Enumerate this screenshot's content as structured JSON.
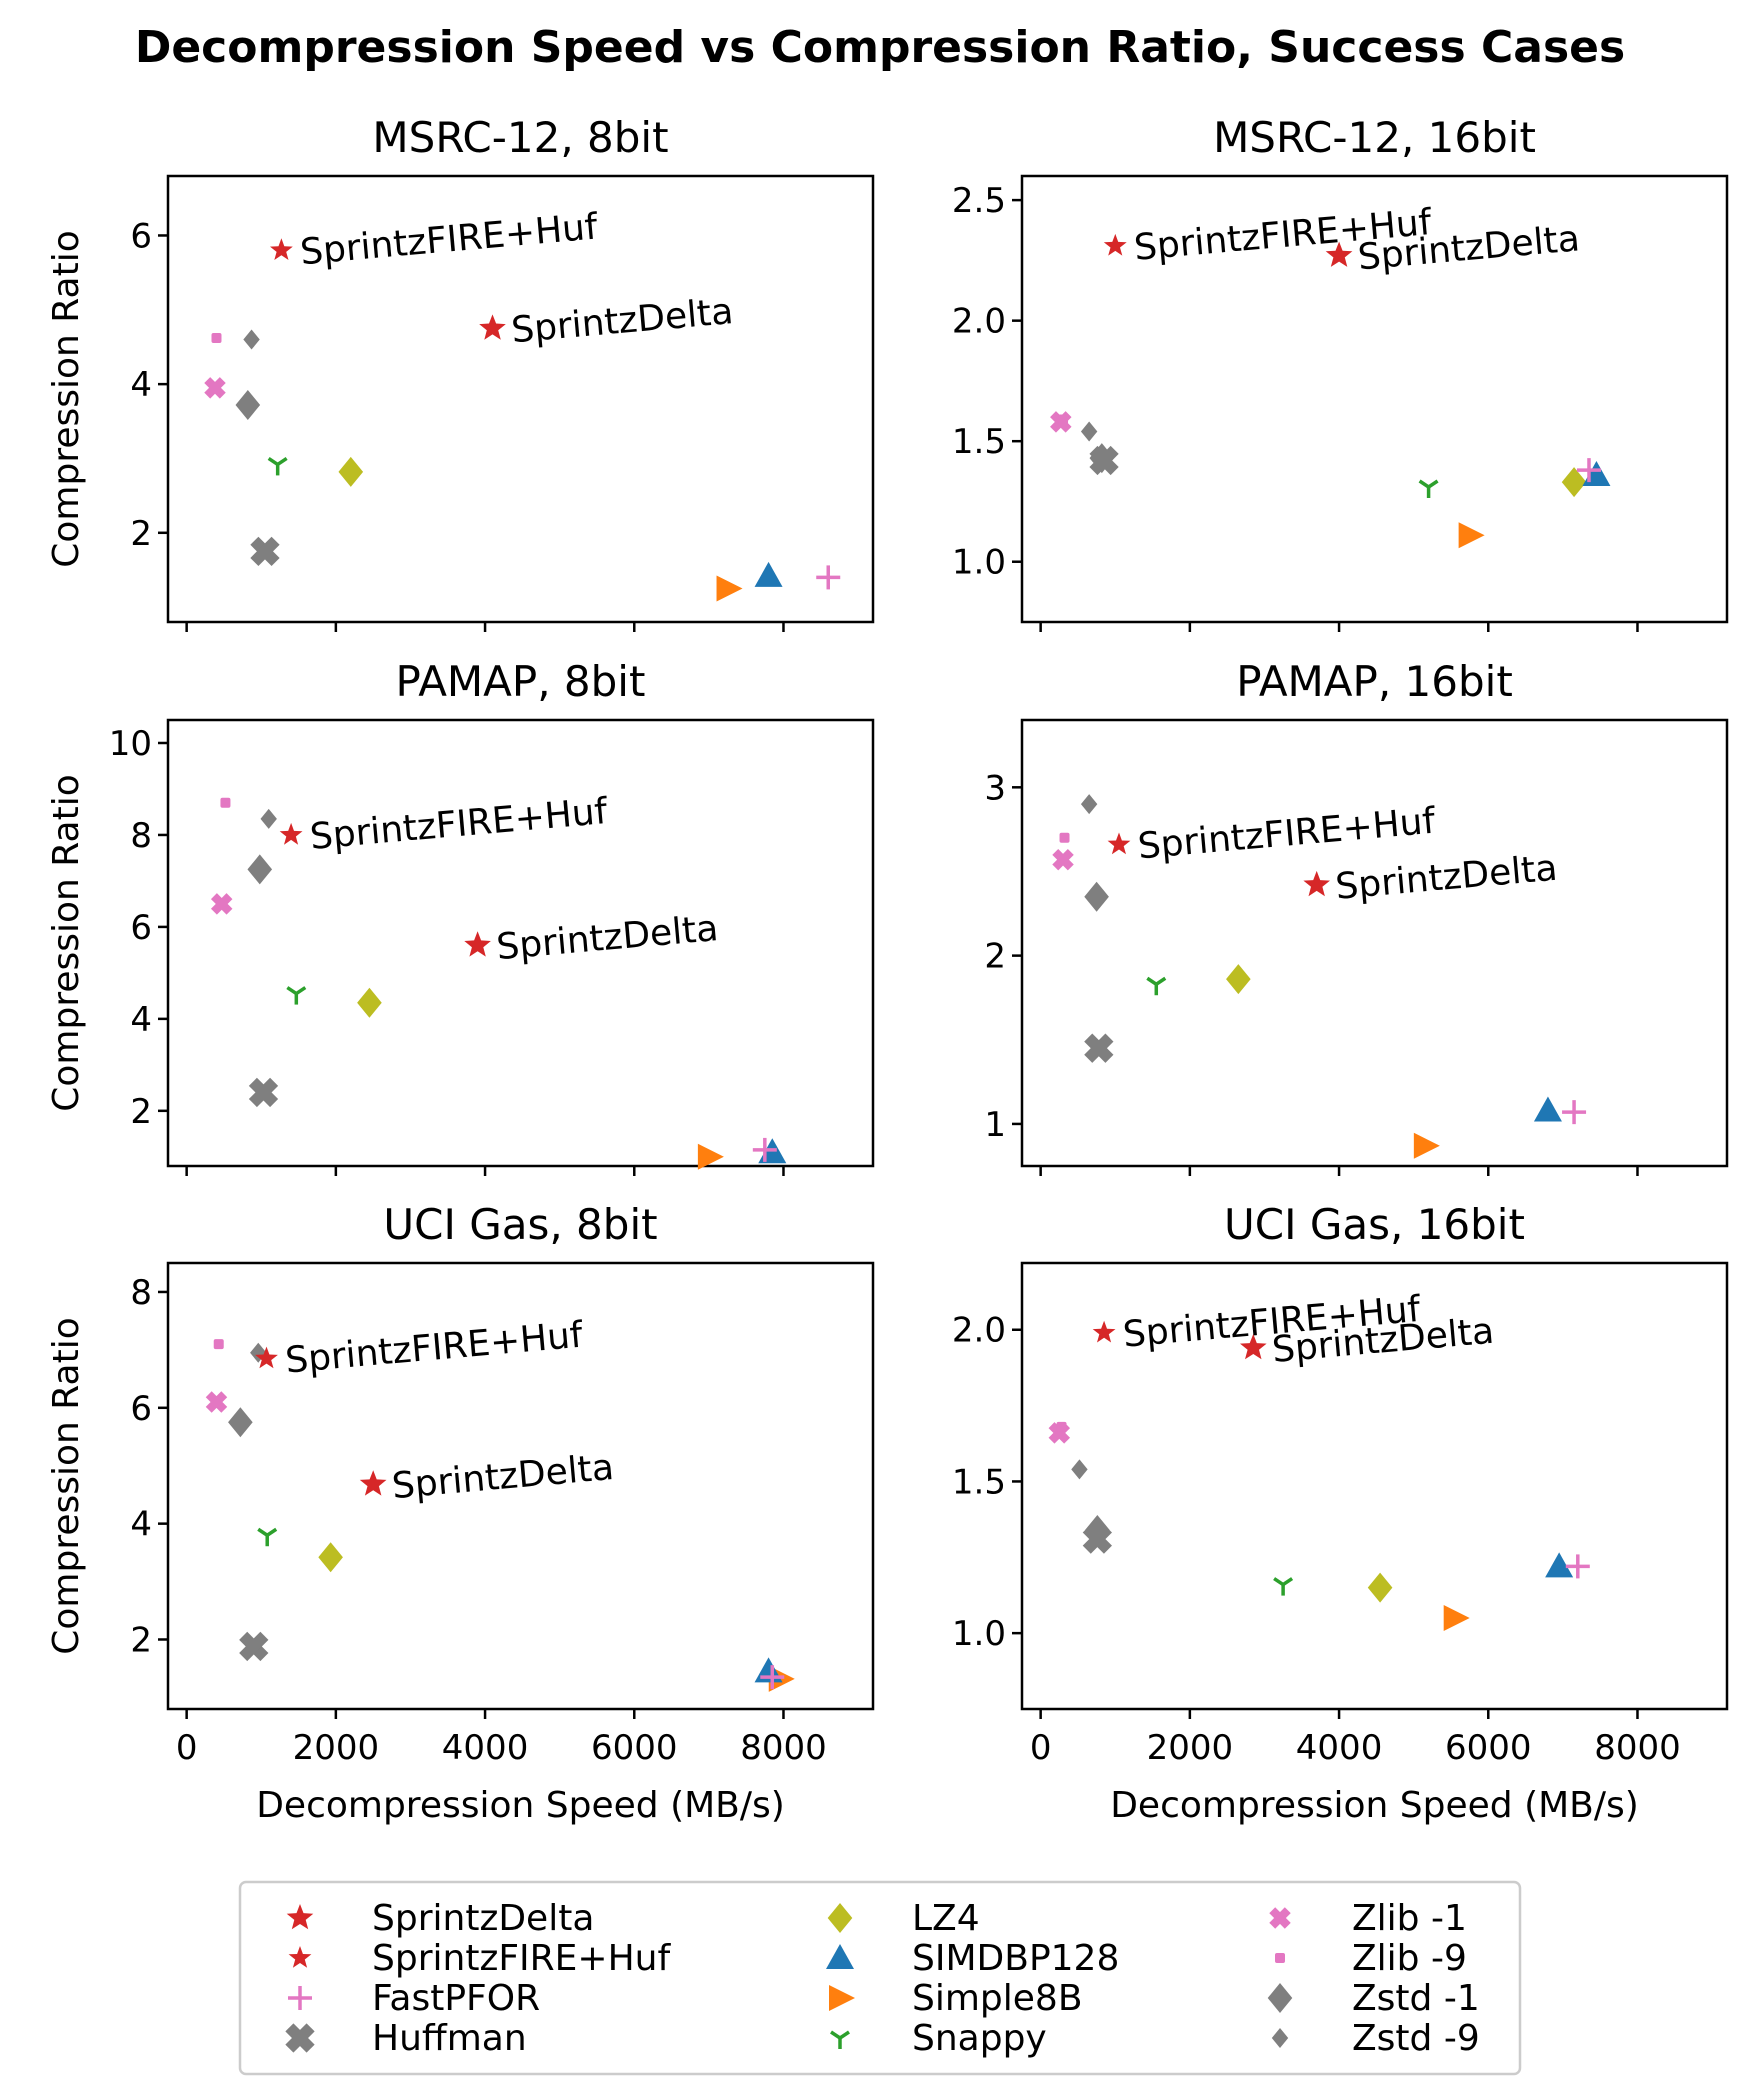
{
  "figure_title": "Decompression Speed vs Compression Ratio, Success Cases",
  "xlabel": "Decompression Speed (MB/s)",
  "ylabel": "Compression Ratio",
  "legend": [
    {
      "name": "SprintzDelta",
      "marker": "star-icon",
      "color": "#d62728"
    },
    {
      "name": "SprintzFIRE+Huf",
      "marker": "star-small-icon",
      "color": "#d62728"
    },
    {
      "name": "FastPFOR",
      "marker": "plus-icon",
      "color": "#e377c2"
    },
    {
      "name": "Huffman",
      "marker": "x-filled-icon",
      "color": "#7f7f7f"
    },
    {
      "name": "LZ4",
      "marker": "diamond-icon",
      "color": "#bcbd22"
    },
    {
      "name": "SIMDBP128",
      "marker": "triangle-up-icon",
      "color": "#1f77b4"
    },
    {
      "name": "Simple8B",
      "marker": "triangle-right-icon",
      "color": "#ff7f0e"
    },
    {
      "name": "Snappy",
      "marker": "tri-down-icon",
      "color": "#2ca02c"
    },
    {
      "name": "Zlib -1",
      "marker": "x-filled-small-icon",
      "color": "#e377c2"
    },
    {
      "name": "Zlib -9",
      "marker": "dot-icon",
      "color": "#e377c2"
    },
    {
      "name": "Zstd -1",
      "marker": "diamond-icon",
      "color": "#7f7f7f"
    },
    {
      "name": "Zstd -9",
      "marker": "diamond-small-icon",
      "color": "#7f7f7f"
    }
  ],
  "chart_data": [
    {
      "type": "scatter",
      "title": "MSRC-12, 8bit",
      "xlim": [
        -250,
        9200
      ],
      "ylim": [
        0.8,
        6.8
      ],
      "xticks": [
        0,
        2000,
        4000,
        6000,
        8000
      ],
      "yticks": [
        2,
        4,
        6
      ],
      "ytick_labels": [
        "2",
        "4",
        "6"
      ],
      "points": [
        {
          "series": "SprintzDelta",
          "x": 4100,
          "y": 4.75,
          "label": "SprintzDelta"
        },
        {
          "series": "SprintzFIRE+Huf",
          "x": 1270,
          "y": 5.8,
          "label": "SprintzFIRE+Huf"
        },
        {
          "series": "FastPFOR",
          "x": 8600,
          "y": 1.4
        },
        {
          "series": "Huffman",
          "x": 1050,
          "y": 1.75
        },
        {
          "series": "LZ4",
          "x": 2200,
          "y": 2.82
        },
        {
          "series": "SIMDBP128",
          "x": 7800,
          "y": 1.42
        },
        {
          "series": "Simple8B",
          "x": 7250,
          "y": 1.25
        },
        {
          "series": "Snappy",
          "x": 1220,
          "y": 2.92
        },
        {
          "series": "Zlib -1",
          "x": 380,
          "y": 3.95
        },
        {
          "series": "Zlib -9",
          "x": 400,
          "y": 4.62
        },
        {
          "series": "Zstd -1",
          "x": 820,
          "y": 3.72
        },
        {
          "series": "Zstd -9",
          "x": 870,
          "y": 4.6
        }
      ]
    },
    {
      "type": "scatter",
      "title": "MSRC-12, 16bit",
      "xlim": [
        -250,
        9200
      ],
      "ylim": [
        0.75,
        2.6
      ],
      "xticks": [
        0,
        2000,
        4000,
        6000,
        8000
      ],
      "yticks": [
        1.0,
        1.5,
        2.0,
        2.5
      ],
      "ytick_labels": [
        "1.0",
        "1.5",
        "2.0",
        "2.5"
      ],
      "points": [
        {
          "series": "SprintzDelta",
          "x": 4000,
          "y": 2.27,
          "label": "SprintzDelta"
        },
        {
          "series": "SprintzFIRE+Huf",
          "x": 1000,
          "y": 2.31,
          "label": "SprintzFIRE+Huf"
        },
        {
          "series": "FastPFOR",
          "x": 7350,
          "y": 1.38
        },
        {
          "series": "Huffman",
          "x": 850,
          "y": 1.42
        },
        {
          "series": "LZ4",
          "x": 7150,
          "y": 1.33
        },
        {
          "series": "SIMDBP128",
          "x": 7450,
          "y": 1.36
        },
        {
          "series": "Simple8B",
          "x": 5750,
          "y": 1.11
        },
        {
          "series": "Snappy",
          "x": 5200,
          "y": 1.31
        },
        {
          "series": "Zlib -1",
          "x": 270,
          "y": 1.58
        },
        {
          "series": "Zlib -9",
          "x": 300,
          "y": 1.59
        },
        {
          "series": "Zstd -1",
          "x": 820,
          "y": 1.43
        },
        {
          "series": "Zstd -9",
          "x": 650,
          "y": 1.54
        }
      ]
    },
    {
      "type": "scatter",
      "title": "PAMAP, 8bit",
      "xlim": [
        -250,
        9200
      ],
      "ylim": [
        0.8,
        10.5
      ],
      "xticks": [
        0,
        2000,
        4000,
        6000,
        8000
      ],
      "yticks": [
        2,
        4,
        6,
        8,
        10
      ],
      "ytick_labels": [
        "2",
        "4",
        "6",
        "8",
        "10"
      ],
      "points": [
        {
          "series": "SprintzDelta",
          "x": 3900,
          "y": 5.6,
          "label": "SprintzDelta"
        },
        {
          "series": "SprintzFIRE+Huf",
          "x": 1400,
          "y": 8.0,
          "label": "SprintzFIRE+Huf"
        },
        {
          "series": "FastPFOR",
          "x": 7750,
          "y": 1.15
        },
        {
          "series": "Huffman",
          "x": 1030,
          "y": 2.4
        },
        {
          "series": "LZ4",
          "x": 2450,
          "y": 4.35
        },
        {
          "series": "SIMDBP128",
          "x": 7850,
          "y": 1.1
        },
        {
          "series": "Simple8B",
          "x": 7000,
          "y": 1.0
        },
        {
          "series": "Snappy",
          "x": 1470,
          "y": 4.55
        },
        {
          "series": "Zlib -1",
          "x": 470,
          "y": 6.5
        },
        {
          "series": "Zlib -9",
          "x": 520,
          "y": 8.7
        },
        {
          "series": "Zstd -1",
          "x": 980,
          "y": 7.25
        },
        {
          "series": "Zstd -9",
          "x": 1100,
          "y": 8.35
        }
      ]
    },
    {
      "type": "scatter",
      "title": "PAMAP, 16bit",
      "xlim": [
        -250,
        9200
      ],
      "ylim": [
        0.75,
        3.4
      ],
      "xticks": [
        0,
        2000,
        4000,
        6000,
        8000
      ],
      "yticks": [
        1,
        2,
        3
      ],
      "ytick_labels": [
        "1",
        "2",
        "3"
      ],
      "points": [
        {
          "series": "SprintzDelta",
          "x": 3700,
          "y": 2.42,
          "label": "SprintzDelta"
        },
        {
          "series": "SprintzFIRE+Huf",
          "x": 1050,
          "y": 2.66,
          "label": "SprintzFIRE+Huf"
        },
        {
          "series": "FastPFOR",
          "x": 7150,
          "y": 1.07
        },
        {
          "series": "Huffman",
          "x": 780,
          "y": 1.45
        },
        {
          "series": "LZ4",
          "x": 2650,
          "y": 1.86
        },
        {
          "series": "SIMDBP128",
          "x": 6800,
          "y": 1.08
        },
        {
          "series": "Simple8B",
          "x": 5150,
          "y": 0.87
        },
        {
          "series": "Snappy",
          "x": 1550,
          "y": 1.83
        },
        {
          "series": "Zlib -1",
          "x": 300,
          "y": 2.57
        },
        {
          "series": "Zlib -9",
          "x": 320,
          "y": 2.7
        },
        {
          "series": "Zstd -1",
          "x": 750,
          "y": 2.35
        },
        {
          "series": "Zstd -9",
          "x": 650,
          "y": 2.9
        }
      ]
    },
    {
      "type": "scatter",
      "title": "UCI Gas, 8bit",
      "xlim": [
        -250,
        9200
      ],
      "ylim": [
        0.8,
        8.5
      ],
      "xticks": [
        0,
        2000,
        4000,
        6000,
        8000
      ],
      "yticks": [
        2,
        4,
        6,
        8
      ],
      "ytick_labels": [
        "2",
        "4",
        "6",
        "8"
      ],
      "points": [
        {
          "series": "SprintzDelta",
          "x": 2500,
          "y": 4.68,
          "label": "SprintzDelta"
        },
        {
          "series": "SprintzFIRE+Huf",
          "x": 1070,
          "y": 6.85,
          "label": "SprintzFIRE+Huf"
        },
        {
          "series": "FastPFOR",
          "x": 7850,
          "y": 1.35
        },
        {
          "series": "Huffman",
          "x": 900,
          "y": 1.88
        },
        {
          "series": "LZ4",
          "x": 1930,
          "y": 3.42
        },
        {
          "series": "SIMDBP128",
          "x": 7800,
          "y": 1.45
        },
        {
          "series": "Simple8B",
          "x": 7950,
          "y": 1.32
        },
        {
          "series": "Snappy",
          "x": 1080,
          "y": 3.8
        },
        {
          "series": "Zlib -1",
          "x": 400,
          "y": 6.1
        },
        {
          "series": "Zlib -9",
          "x": 430,
          "y": 7.1
        },
        {
          "series": "Zstd -1",
          "x": 720,
          "y": 5.75
        },
        {
          "series": "Zstd -9",
          "x": 960,
          "y": 6.95
        }
      ]
    },
    {
      "type": "scatter",
      "title": "UCI Gas, 16bit",
      "xlim": [
        -250,
        9200
      ],
      "ylim": [
        0.75,
        2.22
      ],
      "xticks": [
        0,
        2000,
        4000,
        6000,
        8000
      ],
      "yticks": [
        1.0,
        1.5,
        2.0
      ],
      "ytick_labels": [
        "1.0",
        "1.5",
        "2.0"
      ],
      "points": [
        {
          "series": "SprintzDelta",
          "x": 2850,
          "y": 1.94,
          "label": "SprintzDelta"
        },
        {
          "series": "SprintzFIRE+Huf",
          "x": 850,
          "y": 1.99,
          "label": "SprintzFIRE+Huf"
        },
        {
          "series": "FastPFOR",
          "x": 7200,
          "y": 1.22
        },
        {
          "series": "Huffman",
          "x": 760,
          "y": 1.31
        },
        {
          "series": "LZ4",
          "x": 4550,
          "y": 1.15
        },
        {
          "series": "SIMDBP128",
          "x": 6950,
          "y": 1.22
        },
        {
          "series": "Simple8B",
          "x": 5550,
          "y": 1.05
        },
        {
          "series": "Snappy",
          "x": 3250,
          "y": 1.16
        },
        {
          "series": "Zlib -1",
          "x": 250,
          "y": 1.66
        },
        {
          "series": "Zlib -9",
          "x": 280,
          "y": 1.68
        },
        {
          "series": "Zstd -1",
          "x": 760,
          "y": 1.34
        },
        {
          "series": "Zstd -9",
          "x": 520,
          "y": 1.54
        }
      ]
    }
  ]
}
